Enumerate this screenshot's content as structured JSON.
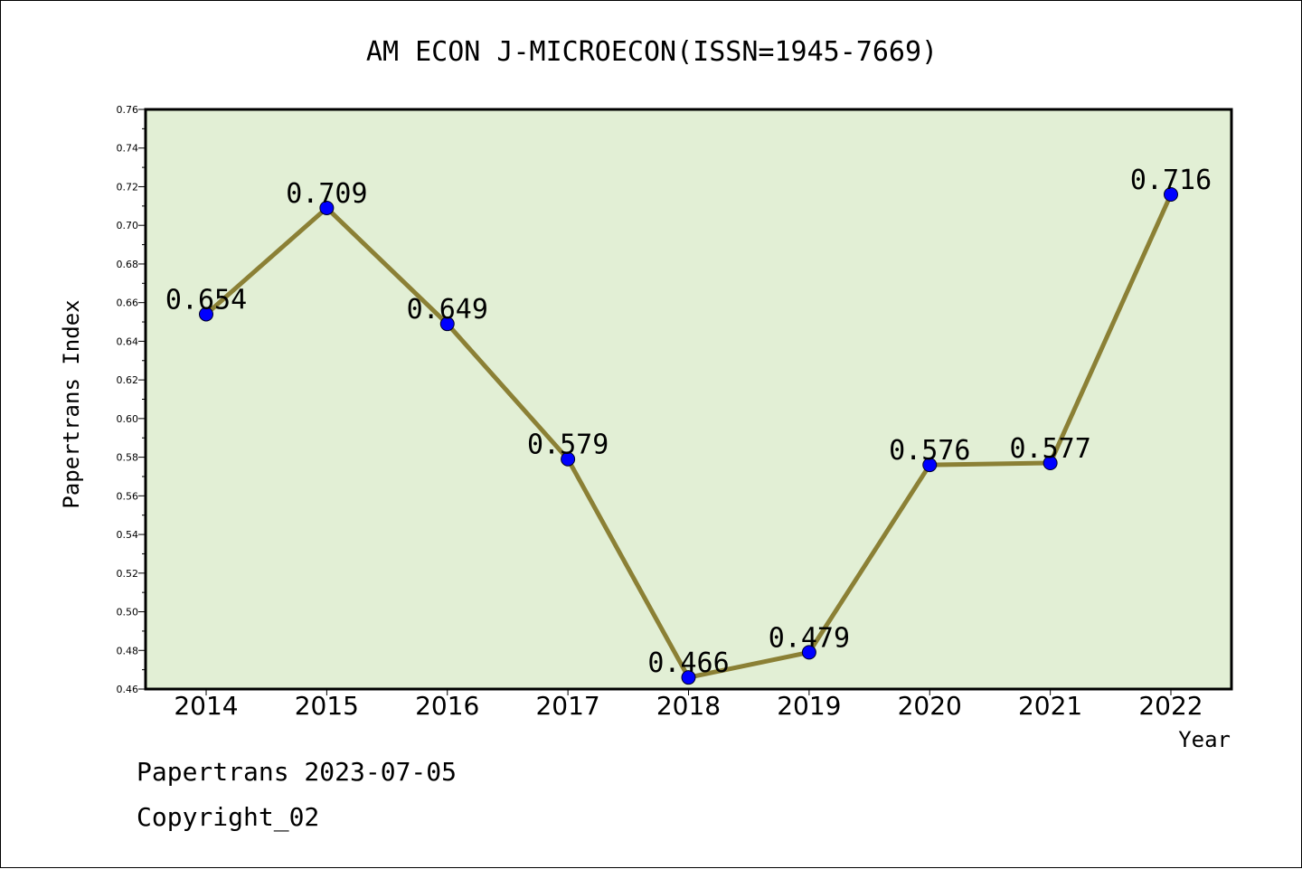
{
  "chart_data": {
    "type": "line",
    "title": "AM ECON J-MICROECON(ISSN=1945-7669)",
    "xlabel": "Year",
    "ylabel": "Papertrans Index",
    "categories": [
      "2014",
      "2015",
      "2016",
      "2017",
      "2018",
      "2019",
      "2020",
      "2021",
      "2022"
    ],
    "values": [
      0.654,
      0.709,
      0.649,
      0.579,
      0.466,
      0.479,
      0.576,
      0.577,
      0.716
    ],
    "data_labels": [
      "0.654",
      "0.709",
      "0.649",
      "0.579",
      "0.466",
      "0.479",
      "0.576",
      "0.577",
      "0.716"
    ],
    "ylim": [
      0.46,
      0.76
    ],
    "yticks": [
      "0.46",
      "0.48",
      "0.50",
      "0.52",
      "0.54",
      "0.56",
      "0.58",
      "0.60",
      "0.62",
      "0.64",
      "0.66",
      "0.68",
      "0.70",
      "0.72",
      "0.74",
      "0.76"
    ],
    "grid": false,
    "colors": {
      "plot_background": "#e2efd5",
      "line": "#8b8035",
      "marker": "#0000ff"
    }
  },
  "footer": {
    "line1": "Papertrans 2023-07-05",
    "line2": "Copyright_02"
  }
}
